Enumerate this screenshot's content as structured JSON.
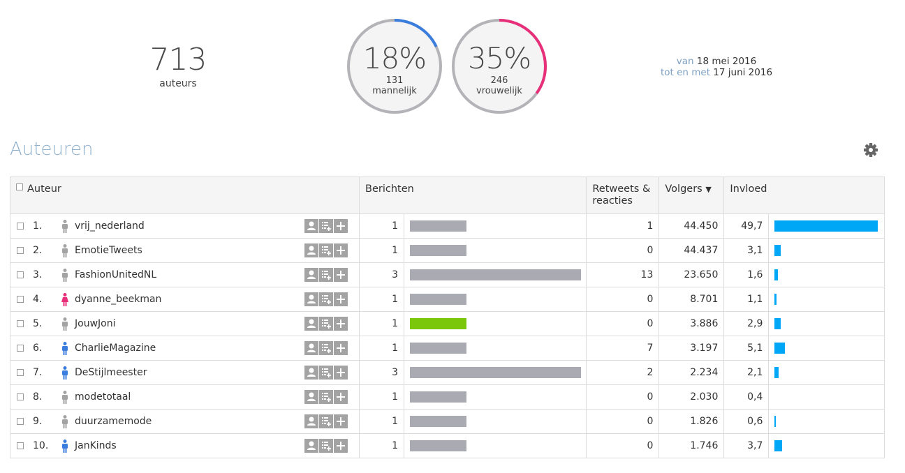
{
  "summary": {
    "total_authors": "713",
    "total_authors_label": "auteurs",
    "male": {
      "percent_label": "18%",
      "percent": 18,
      "count": "131",
      "label": "mannelijk",
      "color": "#3b7ddd"
    },
    "female": {
      "percent_label": "35%",
      "percent": 35,
      "count": "246",
      "label": "vrouwelijk",
      "color": "#e8307a"
    }
  },
  "date_range": {
    "from_prefix": "van",
    "from_date": "18 mei 2016",
    "to_prefix": "tot en met",
    "to_date": "17 juni 2016"
  },
  "section": {
    "title": "Auteuren",
    "settings_icon": "gear-icon"
  },
  "table": {
    "headers": {
      "author": "Auteur",
      "messages": "Berichten",
      "retweets": "Retweets &\nreacties",
      "followers": "Volgers",
      "influence": "Invloed"
    },
    "sort_indicator": "▼",
    "row_actions": [
      "person-icon",
      "list-add-icon",
      "plus-icon"
    ],
    "rows": [
      {
        "rank": "1.",
        "name": "vrij_nederland",
        "gender": "unknown",
        "messages": "1",
        "messages_value": 1,
        "retweets": "1",
        "followers": "44.450",
        "influence": "49,7",
        "influence_value": 49.7,
        "highlight": false
      },
      {
        "rank": "2.",
        "name": "EmotieTweets",
        "gender": "unknown",
        "messages": "1",
        "messages_value": 1,
        "retweets": "0",
        "followers": "44.437",
        "influence": "3,1",
        "influence_value": 3.1,
        "highlight": false
      },
      {
        "rank": "3.",
        "name": "FashionUnitedNL",
        "gender": "unknown",
        "messages": "3",
        "messages_value": 3,
        "retweets": "13",
        "followers": "23.650",
        "influence": "1,6",
        "influence_value": 1.6,
        "highlight": false
      },
      {
        "rank": "4.",
        "name": "dyanne_beekman",
        "gender": "female",
        "messages": "1",
        "messages_value": 1,
        "retweets": "0",
        "followers": "8.701",
        "influence": "1,1",
        "influence_value": 1.1,
        "highlight": false
      },
      {
        "rank": "5.",
        "name": "JouwJoni",
        "gender": "unknown",
        "messages": "1",
        "messages_value": 1,
        "retweets": "0",
        "followers": "3.886",
        "influence": "2,9",
        "influence_value": 2.9,
        "highlight": true
      },
      {
        "rank": "6.",
        "name": "CharlieMagazine",
        "gender": "male",
        "messages": "1",
        "messages_value": 1,
        "retweets": "7",
        "followers": "3.197",
        "influence": "5,1",
        "influence_value": 5.1,
        "highlight": false
      },
      {
        "rank": "7.",
        "name": "DeStijlmeester",
        "gender": "male",
        "messages": "3",
        "messages_value": 3,
        "retweets": "2",
        "followers": "2.234",
        "influence": "2,1",
        "influence_value": 2.1,
        "highlight": false
      },
      {
        "rank": "8.",
        "name": "modetotaal",
        "gender": "unknown",
        "messages": "1",
        "messages_value": 1,
        "retweets": "0",
        "followers": "2.030",
        "influence": "0,4",
        "influence_value": 0.4,
        "highlight": false
      },
      {
        "rank": "9.",
        "name": "duurzamemode",
        "gender": "unknown",
        "messages": "1",
        "messages_value": 1,
        "retweets": "0",
        "followers": "1.826",
        "influence": "0,6",
        "influence_value": 0.6,
        "highlight": false
      },
      {
        "rank": "10.",
        "name": "JanKinds",
        "gender": "male",
        "messages": "1",
        "messages_value": 1,
        "retweets": "0",
        "followers": "1.746",
        "influence": "3,7",
        "influence_value": 3.7,
        "highlight": false
      }
    ]
  },
  "colors": {
    "message_bar": "#aaaab2",
    "message_bar_highlight": "#7ac70c",
    "influence_bar": "#00a7f7",
    "gender_unknown": "#a3a3a3",
    "gender_male": "#3b7ddd",
    "gender_female": "#e8307a",
    "ring_track": "#b3b3b8"
  }
}
